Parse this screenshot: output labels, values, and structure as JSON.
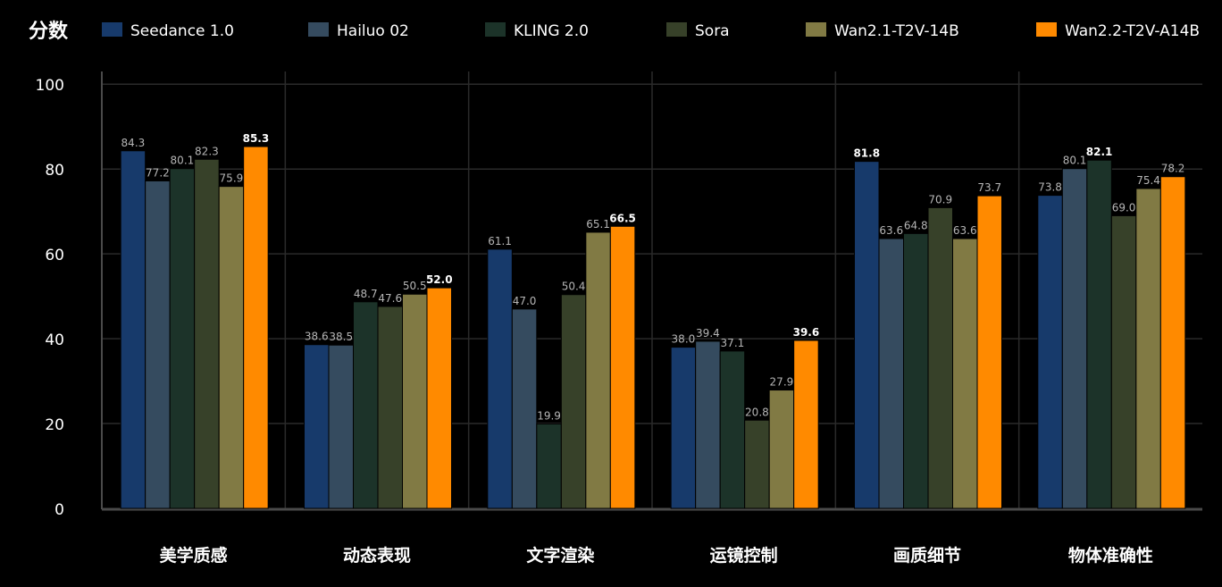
{
  "chart_data": {
    "type": "bar",
    "title": "分数",
    "categories": [
      "美学质感",
      "动态表现",
      "文字渲染",
      "运镜控制",
      "画质细节",
      "物体准确性"
    ],
    "ylim": [
      0,
      100
    ],
    "yticks": [
      "0",
      "20",
      "40",
      "60",
      "80",
      "100"
    ],
    "grid": true,
    "legend_position": "top",
    "series": [
      {
        "name": "Seedance 1.0",
        "color": "#173a6b",
        "values": [
          84.3,
          38.6,
          61.1,
          38.0,
          81.8,
          73.8
        ],
        "labels": [
          "84.3",
          "38.6",
          "61.1",
          "38.0",
          "81.8",
          "73.8"
        ]
      },
      {
        "name": "Hailuo 02",
        "color": "#354b5f",
        "values": [
          77.2,
          38.5,
          47.0,
          39.4,
          63.6,
          80.1
        ],
        "labels": [
          "77.2",
          "38.5",
          "47.0",
          "39.4",
          "63.6",
          "80.1"
        ]
      },
      {
        "name": "KLING 2.0",
        "color": "#1c3329",
        "values": [
          80.1,
          48.7,
          19.9,
          37.1,
          64.8,
          82.1
        ],
        "labels": [
          "80.1",
          "48.7",
          "19.9",
          "37.1",
          "64.8",
          "82.1"
        ]
      },
      {
        "name": "Sora",
        "color": "#374129",
        "values": [
          82.3,
          47.6,
          50.4,
          20.8,
          70.9,
          69.0
        ],
        "labels": [
          "82.3",
          "47.6",
          "50.4",
          "20.8",
          "70.9",
          "69.0"
        ]
      },
      {
        "name": "Wan2.1-T2V-14B",
        "color": "#817a44",
        "values": [
          75.9,
          50.5,
          65.1,
          27.9,
          63.6,
          75.4
        ],
        "labels": [
          "75.9",
          "50.5",
          "65.1",
          "27.9",
          "63.6",
          "75.4"
        ]
      },
      {
        "name": "Wan2.2-T2V-A14B",
        "color": "#ff8a00",
        "values": [
          85.3,
          52.0,
          66.5,
          39.6,
          73.7,
          78.2
        ],
        "labels": [
          "85.3",
          "52.0",
          "66.5",
          "39.6",
          "73.7",
          "78.2"
        ]
      }
    ],
    "bold_labels": [
      {
        "series": 5,
        "category": 0
      },
      {
        "series": 5,
        "category": 1
      },
      {
        "series": 5,
        "category": 2
      },
      {
        "series": 5,
        "category": 3
      },
      {
        "series": 0,
        "category": 4
      },
      {
        "series": 2,
        "category": 5
      }
    ]
  }
}
